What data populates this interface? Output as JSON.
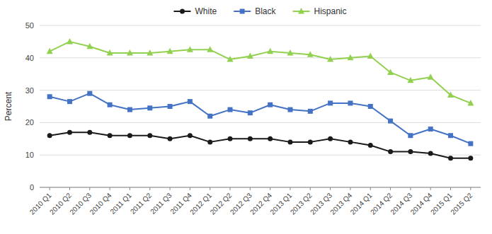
{
  "chart_data": {
    "type": "line",
    "categories": [
      "2010 Q1",
      "2010 Q2",
      "2010 Q3",
      "2010 Q4",
      "2011 Q1",
      "2011 Q2",
      "2011 Q3",
      "2011 Q4",
      "2012 Q1",
      "2012 Q2",
      "2012 Q3",
      "2012 Q4",
      "2013 Q1",
      "2013 Q2",
      "2013 Q3",
      "2013 Q4",
      "2014 Q1",
      "2014 Q2",
      "2014 Q3",
      "2014 Q4",
      "2015 Q1",
      "2015 Q2"
    ],
    "series": [
      {
        "name": "White",
        "color": "#1a1a1a",
        "marker": "circle",
        "values": [
          16,
          17,
          17,
          16,
          16,
          16,
          15,
          16,
          14,
          15,
          15,
          15,
          14,
          14,
          15,
          14,
          13,
          11,
          11,
          10.5,
          9,
          9
        ]
      },
      {
        "name": "Black",
        "color": "#4472c4",
        "marker": "square",
        "values": [
          28,
          26.5,
          29,
          25.5,
          24,
          24.5,
          25,
          26.5,
          22,
          24,
          23,
          25.5,
          24,
          23.5,
          26,
          26,
          25,
          20.5,
          16,
          18,
          16,
          13.5
        ]
      },
      {
        "name": "Hispanic",
        "color": "#92d050",
        "marker": "triangle",
        "values": [
          42,
          45,
          43.5,
          41.5,
          41.5,
          41.5,
          42,
          42.5,
          42.5,
          39.5,
          40.5,
          42,
          41.5,
          41,
          39.5,
          40,
          40.5,
          35.5,
          33,
          34,
          28.5,
          26
        ]
      }
    ],
    "y_label": "Percent",
    "ylim": [
      0,
      50
    ],
    "yticks": [
      0,
      10,
      20,
      30,
      40,
      50
    ],
    "grid": true,
    "legend": "top"
  }
}
